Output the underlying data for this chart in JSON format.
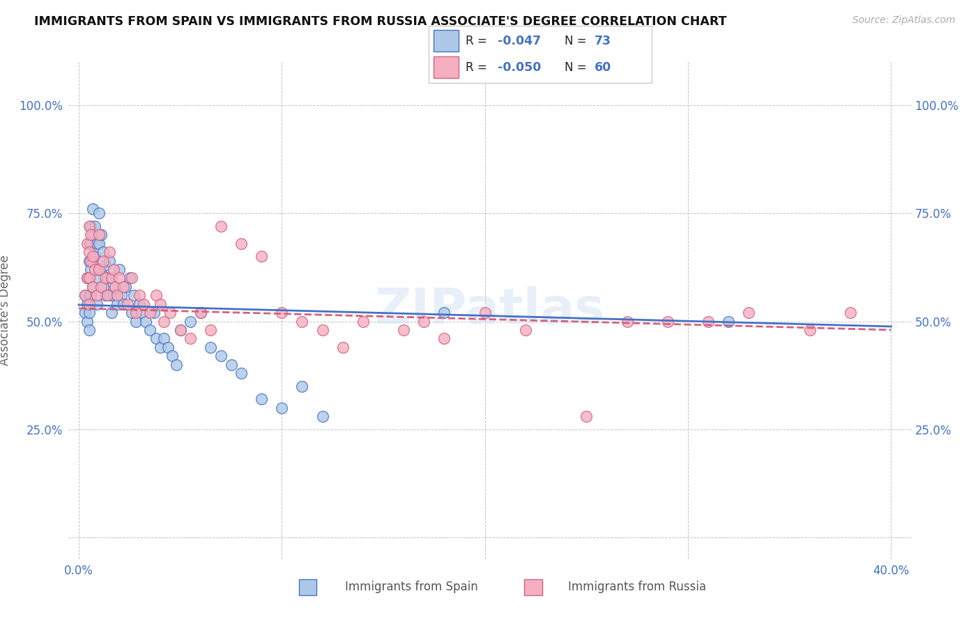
{
  "title": "IMMIGRANTS FROM SPAIN VS IMMIGRANTS FROM RUSSIA ASSOCIATE'S DEGREE CORRELATION CHART",
  "source": "Source: ZipAtlas.com",
  "ylabel": "Associate's Degree",
  "legend_r1": "-0.047",
  "legend_n1": "73",
  "legend_r2": "-0.050",
  "legend_n2": "60",
  "legend_label1": "Immigrants from Spain",
  "legend_label2": "Immigrants from Russia",
  "color_spain": "#adc8e8",
  "color_russia": "#f5afc0",
  "color_line_spain": "#4472c4",
  "color_line_russia": "#d46080",
  "watermark": "ZIPatlas",
  "spain_x": [
    0.003,
    0.003,
    0.004,
    0.004,
    0.004,
    0.005,
    0.005,
    0.005,
    0.005,
    0.005,
    0.005,
    0.006,
    0.006,
    0.006,
    0.006,
    0.007,
    0.007,
    0.007,
    0.007,
    0.008,
    0.008,
    0.009,
    0.009,
    0.009,
    0.01,
    0.01,
    0.01,
    0.011,
    0.011,
    0.012,
    0.012,
    0.013,
    0.013,
    0.014,
    0.015,
    0.015,
    0.016,
    0.016,
    0.017,
    0.018,
    0.019,
    0.02,
    0.021,
    0.022,
    0.023,
    0.025,
    0.026,
    0.027,
    0.028,
    0.03,
    0.031,
    0.033,
    0.035,
    0.037,
    0.038,
    0.04,
    0.042,
    0.044,
    0.046,
    0.048,
    0.05,
    0.055,
    0.06,
    0.065,
    0.07,
    0.075,
    0.08,
    0.09,
    0.1,
    0.11,
    0.12,
    0.18,
    0.32
  ],
  "spain_y": [
    0.56,
    0.52,
    0.6,
    0.54,
    0.5,
    0.68,
    0.64,
    0.6,
    0.56,
    0.52,
    0.48,
    0.72,
    0.68,
    0.62,
    0.56,
    0.76,
    0.7,
    0.64,
    0.58,
    0.72,
    0.65,
    0.68,
    0.6,
    0.54,
    0.75,
    0.68,
    0.62,
    0.7,
    0.62,
    0.66,
    0.58,
    0.63,
    0.56,
    0.6,
    0.64,
    0.56,
    0.6,
    0.52,
    0.56,
    0.58,
    0.54,
    0.62,
    0.56,
    0.54,
    0.58,
    0.6,
    0.52,
    0.56,
    0.5,
    0.54,
    0.52,
    0.5,
    0.48,
    0.52,
    0.46,
    0.44,
    0.46,
    0.44,
    0.42,
    0.4,
    0.48,
    0.5,
    0.52,
    0.44,
    0.42,
    0.4,
    0.38,
    0.32,
    0.3,
    0.35,
    0.28,
    0.52,
    0.5
  ],
  "russia_x": [
    0.003,
    0.004,
    0.004,
    0.005,
    0.005,
    0.005,
    0.005,
    0.006,
    0.006,
    0.007,
    0.007,
    0.008,
    0.009,
    0.01,
    0.01,
    0.011,
    0.012,
    0.013,
    0.014,
    0.015,
    0.016,
    0.017,
    0.018,
    0.019,
    0.02,
    0.022,
    0.024,
    0.026,
    0.028,
    0.03,
    0.032,
    0.035,
    0.038,
    0.04,
    0.042,
    0.045,
    0.05,
    0.055,
    0.06,
    0.065,
    0.07,
    0.08,
    0.09,
    0.1,
    0.11,
    0.12,
    0.13,
    0.14,
    0.16,
    0.17,
    0.18,
    0.2,
    0.22,
    0.25,
    0.27,
    0.29,
    0.31,
    0.33,
    0.36,
    0.38
  ],
  "russia_y": [
    0.56,
    0.68,
    0.6,
    0.72,
    0.66,
    0.6,
    0.54,
    0.7,
    0.64,
    0.65,
    0.58,
    0.62,
    0.56,
    0.7,
    0.62,
    0.58,
    0.64,
    0.6,
    0.56,
    0.66,
    0.6,
    0.62,
    0.58,
    0.56,
    0.6,
    0.58,
    0.54,
    0.6,
    0.52,
    0.56,
    0.54,
    0.52,
    0.56,
    0.54,
    0.5,
    0.52,
    0.48,
    0.46,
    0.52,
    0.48,
    0.72,
    0.68,
    0.65,
    0.52,
    0.5,
    0.48,
    0.44,
    0.5,
    0.48,
    0.5,
    0.46,
    0.52,
    0.48,
    0.28,
    0.5,
    0.5,
    0.5,
    0.52,
    0.48,
    0.52
  ],
  "xlim_min": -0.005,
  "xlim_max": 0.41,
  "ylim_min": -0.05,
  "ylim_max": 1.1
}
